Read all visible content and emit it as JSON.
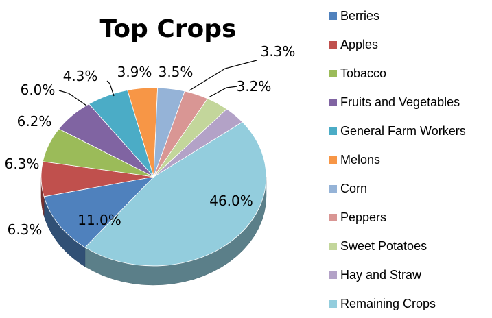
{
  "chart_data": {
    "type": "pie",
    "style": "3d",
    "title": "Top Crops",
    "legend_position": "right",
    "slices": [
      {
        "name": "Remaining Crops",
        "value": 46.0,
        "label": "46.0%",
        "color": "#93cddd"
      },
      {
        "name": "Berries",
        "value": 11.0,
        "label": "11.0%",
        "color": "#4f81bd"
      },
      {
        "name": "Apples",
        "value": 6.3,
        "label": "6.3%",
        "color": "#c0504d"
      },
      {
        "name": "Tobacco",
        "value": 6.3,
        "label": "6.3%",
        "color": "#9bbb59"
      },
      {
        "name": "Fruits and Vegetables",
        "value": 6.2,
        "label": "6.2%",
        "color": "#8064a2"
      },
      {
        "name": "General Farm Workers",
        "value": 6.0,
        "label": "6.0%",
        "color": "#4bacc6"
      },
      {
        "name": "Melons",
        "value": 4.3,
        "label": "4.3%",
        "color": "#f79646"
      },
      {
        "name": "Corn",
        "value": 3.9,
        "label": "3.9%",
        "color": "#95b3d7"
      },
      {
        "name": "Peppers",
        "value": 3.5,
        "label": "3.5%",
        "color": "#d99694"
      },
      {
        "name": "Sweet Potatoes",
        "value": 3.3,
        "label": "3.3%",
        "color": "#c3d69b"
      },
      {
        "name": "Hay and Straw",
        "value": 3.2,
        "label": "3.2%",
        "color": "#b3a2c7"
      }
    ],
    "legend": [
      "Berries",
      "Apples",
      "Tobacco",
      "Fruits and Vegetables",
      "General Farm Workers",
      "Melons",
      "Corn",
      "Peppers",
      "Sweet Potatoes",
      "Hay and Straw",
      "Remaining Crops"
    ]
  }
}
